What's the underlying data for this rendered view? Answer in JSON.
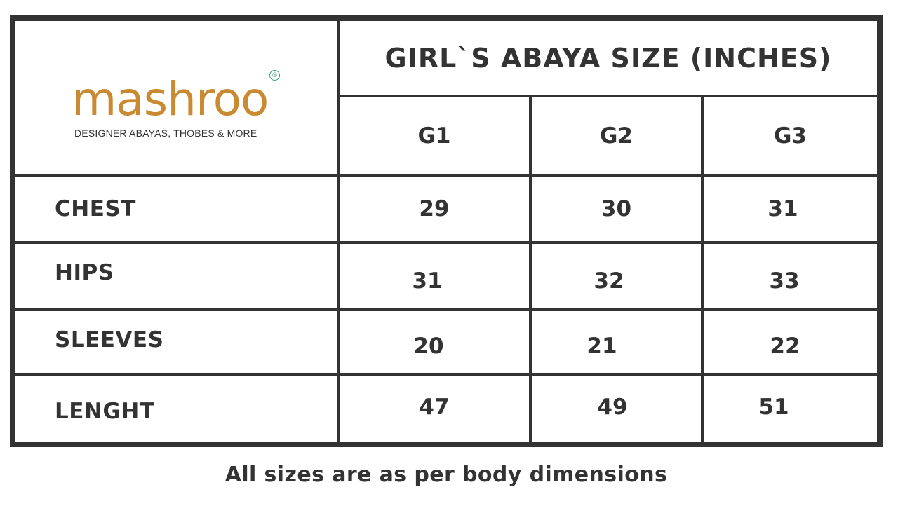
{
  "brand": {
    "logo_text": "mashroo",
    "tagline": "DESIGNER ABAYAS, THOBES & MORE",
    "registered_mark": "®",
    "logo_color": "#c98a32",
    "mark_color": "#2e9e6a"
  },
  "table": {
    "title": "GIRL`S ABAYA SIZE (INCHES)",
    "sizes": [
      "G1",
      "G2",
      "G3"
    ],
    "rows": [
      {
        "label": "CHEST",
        "values": [
          "29",
          "30",
          "31"
        ]
      },
      {
        "label": "HIPS",
        "values": [
          "31",
          "32",
          "33"
        ]
      },
      {
        "label": "SLEEVES",
        "values": [
          "20",
          "21",
          "22"
        ]
      },
      {
        "label": "LENGHT",
        "values": [
          "47",
          "49",
          "51"
        ]
      }
    ],
    "border_color": "#333333"
  },
  "footer": {
    "note": "All sizes are as per body dimensions"
  }
}
